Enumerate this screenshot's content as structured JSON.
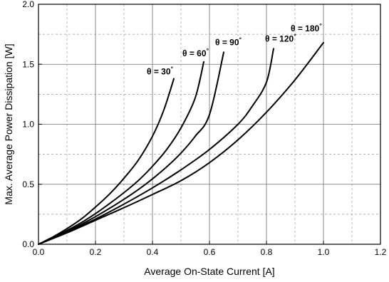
{
  "chart_data": {
    "type": "line",
    "xlabel": "Average On-State Current [A]",
    "ylabel": "Max. Average Power Dissipation [W]",
    "xlim": [
      0.0,
      1.2
    ],
    "ylim": [
      0.0,
      2.0
    ],
    "x_ticks": [
      "0.0",
      "0.2",
      "0.4",
      "0.6",
      "0.8",
      "1.0",
      "1.2"
    ],
    "y_ticks": [
      "0.0",
      "0.5",
      "1.0",
      "1.5",
      "2.0"
    ],
    "grid": {
      "major": true,
      "minor": true
    },
    "line_color": "#000000",
    "series": [
      {
        "name": "θ = 30°",
        "label_text": "θ = 30",
        "label_sup": "°",
        "x": [
          0,
          0.05,
          0.1,
          0.15,
          0.2,
          0.25,
          0.3,
          0.35,
          0.4,
          0.44,
          0.475
        ],
        "y": [
          0,
          0.06,
          0.13,
          0.21,
          0.31,
          0.42,
          0.55,
          0.7,
          0.9,
          1.12,
          1.38
        ]
      },
      {
        "name": "θ = 60°",
        "label_text": "θ = 60",
        "label_sup": "°",
        "x": [
          0,
          0.05,
          0.1,
          0.15,
          0.2,
          0.25,
          0.3,
          0.35,
          0.4,
          0.45,
          0.5,
          0.55,
          0.58
        ],
        "y": [
          0,
          0.055,
          0.115,
          0.18,
          0.255,
          0.34,
          0.43,
          0.53,
          0.65,
          0.79,
          0.97,
          1.22,
          1.52
        ]
      },
      {
        "name": "θ = 90°",
        "label_text": "θ = 90",
        "label_sup": "°",
        "x": [
          0,
          0.05,
          0.1,
          0.15,
          0.2,
          0.25,
          0.3,
          0.35,
          0.4,
          0.45,
          0.5,
          0.55,
          0.6,
          0.65
        ],
        "y": [
          0,
          0.05,
          0.105,
          0.165,
          0.23,
          0.3,
          0.375,
          0.455,
          0.545,
          0.645,
          0.76,
          0.9,
          1.08,
          1.6
        ]
      },
      {
        "name": "θ = 120°",
        "label_text": "θ = 120",
        "label_sup": "°",
        "x": [
          0,
          0.1,
          0.2,
          0.3,
          0.4,
          0.5,
          0.6,
          0.7,
          0.75,
          0.8,
          0.825
        ],
        "y": [
          0,
          0.1,
          0.21,
          0.335,
          0.47,
          0.62,
          0.79,
          1.0,
          1.15,
          1.35,
          1.63
        ]
      },
      {
        "name": "θ = 180°",
        "label_text": "θ = 180",
        "label_sup": "°",
        "x": [
          0,
          0.1,
          0.2,
          0.3,
          0.4,
          0.5,
          0.6,
          0.7,
          0.8,
          0.9,
          1.0
        ],
        "y": [
          0,
          0.095,
          0.2,
          0.305,
          0.415,
          0.53,
          0.68,
          0.87,
          1.1,
          1.37,
          1.68
        ]
      }
    ]
  }
}
